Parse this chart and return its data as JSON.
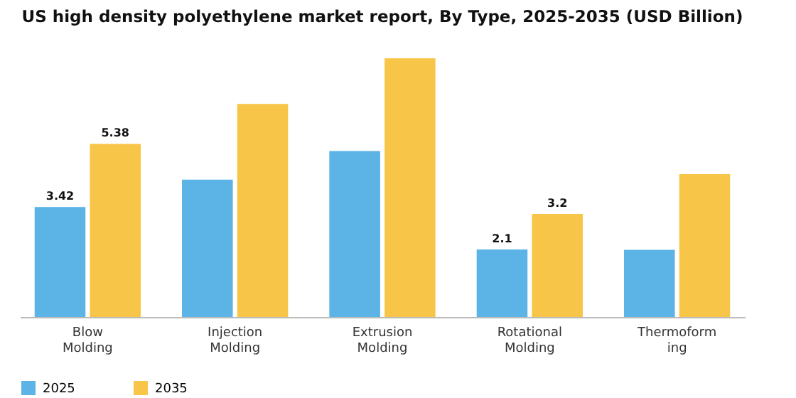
{
  "chart_data": {
    "type": "bar",
    "title": "US high density polyethylene market report, By Type, 2025-2035 (USD Billion)",
    "categories": [
      "Blow Molding",
      "Injection Molding",
      "Extrusion Molding",
      "Rotational Molding",
      "Thermoforming"
    ],
    "series": [
      {
        "name": "2025",
        "color": "#5bb3e6",
        "values": [
          3.42,
          4.27,
          5.16,
          2.1,
          2.09
        ],
        "value_labels": [
          "3.42",
          null,
          null,
          "2.1",
          null
        ]
      },
      {
        "name": "2035",
        "color": "#f7c548",
        "values": [
          5.38,
          6.62,
          8.04,
          3.2,
          4.44
        ],
        "value_labels": [
          "5.38",
          null,
          null,
          "3.2",
          null
        ]
      }
    ],
    "legend": "bottom"
  }
}
